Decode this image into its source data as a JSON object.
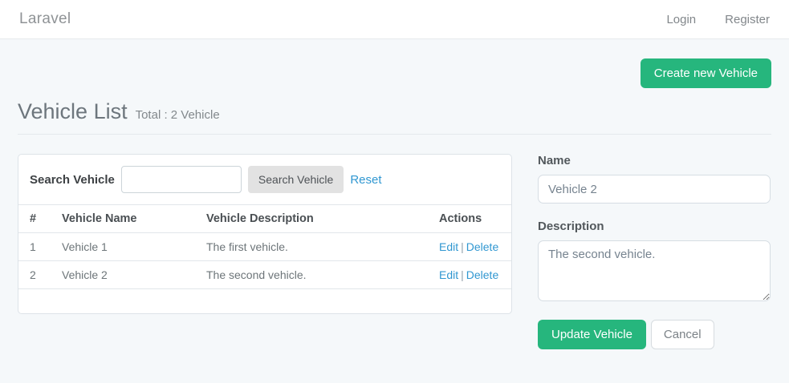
{
  "navbar": {
    "brand": "Laravel",
    "links": [
      {
        "label": "Login"
      },
      {
        "label": "Register"
      }
    ]
  },
  "page": {
    "create_button": "Create new Vehicle",
    "title": "Vehicle List",
    "subtitle": "Total : 2 Vehicle"
  },
  "search": {
    "label": "Search Vehicle",
    "input_value": "",
    "button": "Search Vehicle",
    "reset": "Reset"
  },
  "table": {
    "headers": [
      "#",
      "Vehicle Name",
      "Vehicle Description",
      "Actions"
    ],
    "rows": [
      {
        "num": "1",
        "name": "Vehicle 1",
        "description": "The first vehicle.",
        "edit": "Edit",
        "separator": "|",
        "delete": "Delete"
      },
      {
        "num": "2",
        "name": "Vehicle 2",
        "description": "The second vehicle.",
        "edit": "Edit",
        "separator": "|",
        "delete": "Delete"
      }
    ]
  },
  "form": {
    "name_label": "Name",
    "name_value": "Vehicle 2",
    "description_label": "Description",
    "description_value": "The second vehicle.",
    "update_button": "Update Vehicle",
    "cancel_button": "Cancel"
  },
  "colors": {
    "accent_green": "#26b67d",
    "link_blue": "#3097d1",
    "body_bg": "#f5f8fa"
  }
}
